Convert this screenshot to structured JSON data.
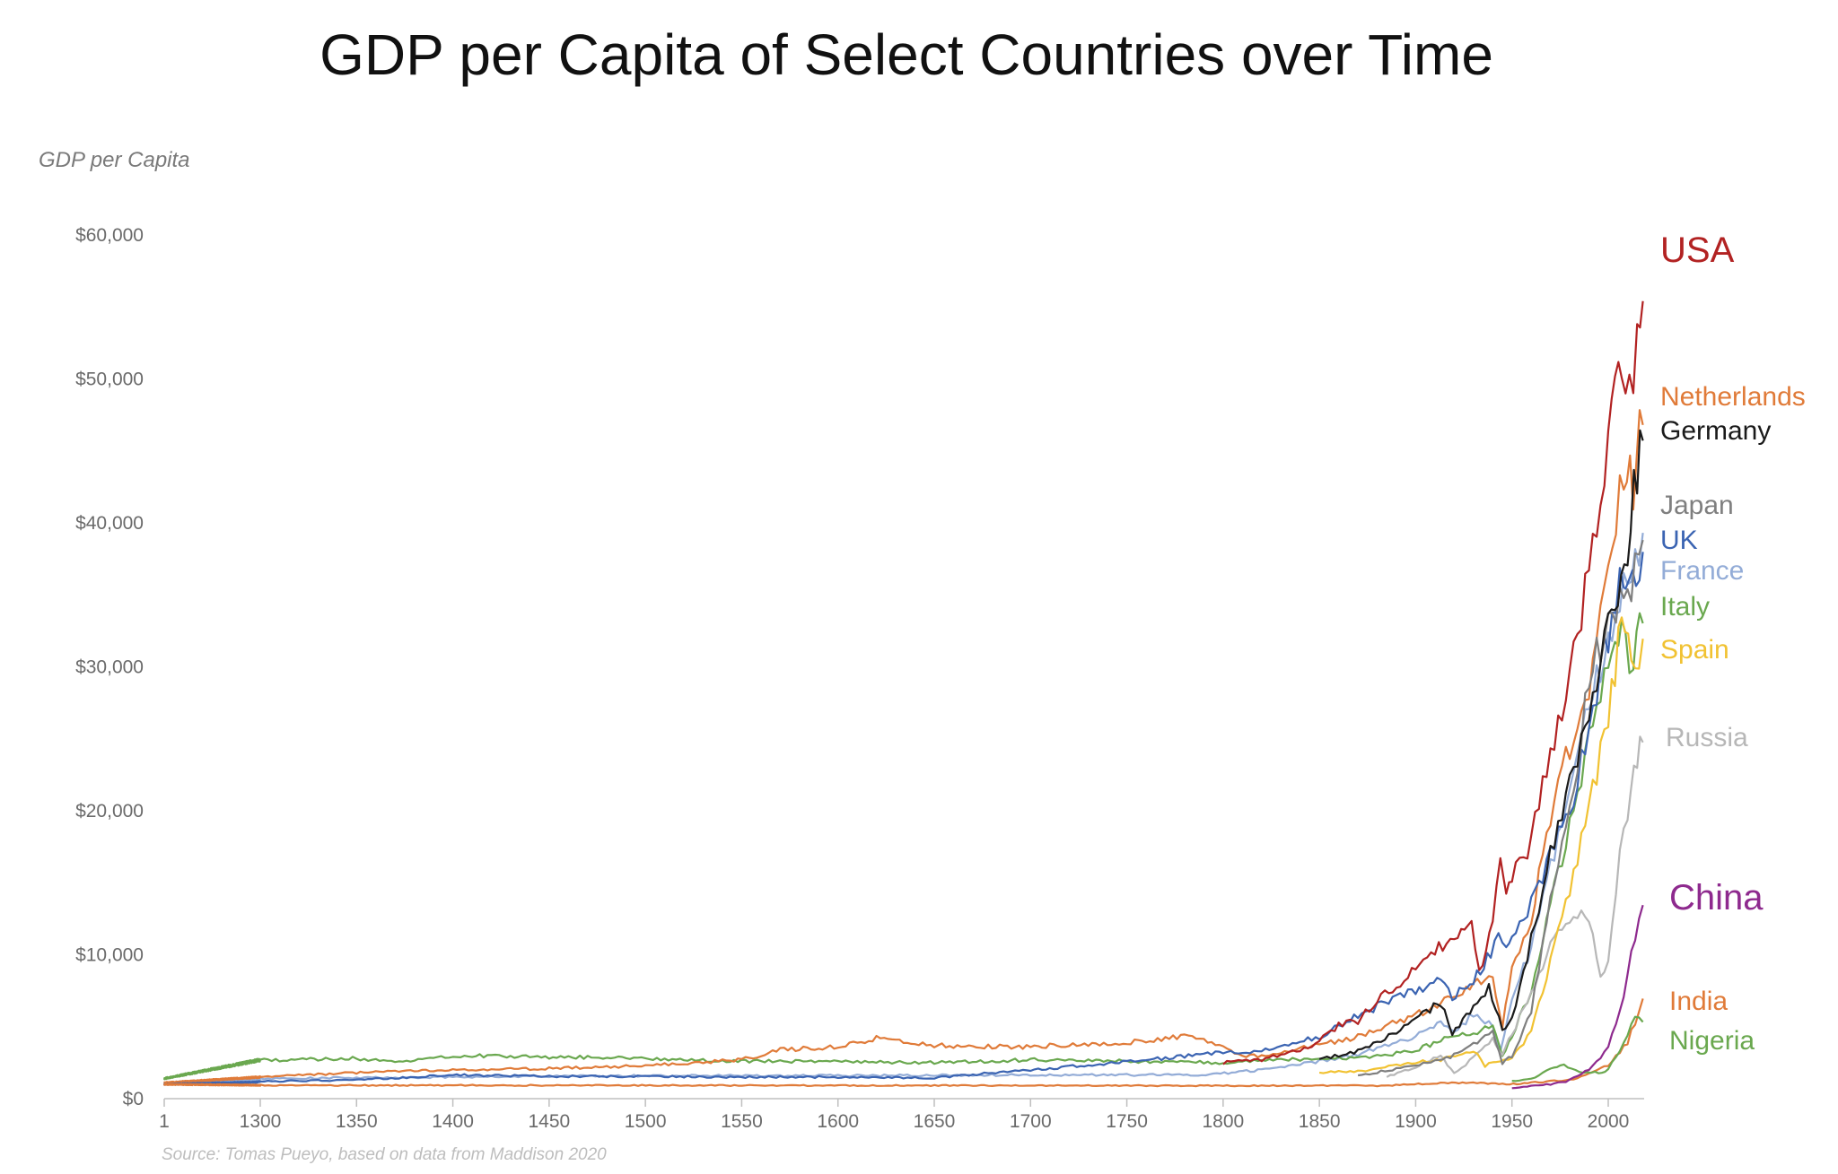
{
  "chart_data": {
    "type": "line",
    "title": "GDP per Capita of Select Countries over Time",
    "ylabel": "GDP per Capita",
    "xlabel": "",
    "source": "Source: Tomas Pueyo, based on data from Maddison 2020",
    "xlim": [
      1,
      2018
    ],
    "ylim": [
      0,
      60000
    ],
    "y_ticks": [
      {
        "value": 0,
        "label": "$0"
      },
      {
        "value": 10000,
        "label": "$10,000"
      },
      {
        "value": 20000,
        "label": "$20,000"
      },
      {
        "value": 30000,
        "label": "$30,000"
      },
      {
        "value": 40000,
        "label": "$40,000"
      },
      {
        "value": 50000,
        "label": "$50,000"
      },
      {
        "value": 60000,
        "label": "$60,000"
      }
    ],
    "x_ticks": [
      {
        "value": 1,
        "label": "1"
      },
      {
        "value": 1300,
        "label": "1300"
      },
      {
        "value": 1350,
        "label": "1350"
      },
      {
        "value": 1400,
        "label": "1400"
      },
      {
        "value": 1450,
        "label": "1450"
      },
      {
        "value": 1500,
        "label": "1500"
      },
      {
        "value": 1550,
        "label": "1550"
      },
      {
        "value": 1600,
        "label": "1600"
      },
      {
        "value": 1650,
        "label": "1650"
      },
      {
        "value": 1700,
        "label": "1700"
      },
      {
        "value": 1750,
        "label": "1750"
      },
      {
        "value": 1800,
        "label": "1800"
      },
      {
        "value": 1850,
        "label": "1850"
      },
      {
        "value": 1900,
        "label": "1900"
      },
      {
        "value": 1950,
        "label": "1950"
      },
      {
        "value": 2000,
        "label": "2000"
      }
    ],
    "grid": false,
    "legend": "direct labels at right",
    "series": [
      {
        "name": "USA",
        "color": "#b22222",
        "label_size": 40,
        "points": [
          [
            1800,
            2500
          ],
          [
            1820,
            2700
          ],
          [
            1840,
            3400
          ],
          [
            1850,
            4000
          ],
          [
            1860,
            5100
          ],
          [
            1870,
            5400
          ],
          [
            1880,
            6900
          ],
          [
            1890,
            7700
          ],
          [
            1900,
            9200
          ],
          [
            1910,
            10400
          ],
          [
            1920,
            10800
          ],
          [
            1929,
            12000
          ],
          [
            1933,
            8700
          ],
          [
            1940,
            12000
          ],
          [
            1944,
            17000
          ],
          [
            1947,
            14000
          ],
          [
            1950,
            15200
          ],
          [
            1960,
            18000
          ],
          [
            1970,
            24000
          ],
          [
            1980,
            29500
          ],
          [
            1990,
            36500
          ],
          [
            2000,
            45800
          ],
          [
            2007,
            50900
          ],
          [
            2009,
            48500
          ],
          [
            2015,
            52500
          ],
          [
            2018,
            55300
          ]
        ]
      },
      {
        "name": "Netherlands",
        "color": "#e07b39",
        "label_size": 30,
        "points": [
          [
            1,
            1100
          ],
          [
            1300,
            1500
          ],
          [
            1350,
            1800
          ],
          [
            1400,
            2000
          ],
          [
            1450,
            2100
          ],
          [
            1500,
            2300
          ],
          [
            1550,
            2700
          ],
          [
            1570,
            3400
          ],
          [
            1600,
            3600
          ],
          [
            1620,
            4200
          ],
          [
            1650,
            3700
          ],
          [
            1700,
            3600
          ],
          [
            1750,
            3900
          ],
          [
            1780,
            4300
          ],
          [
            1800,
            3700
          ],
          [
            1808,
            3000
          ],
          [
            1820,
            3000
          ],
          [
            1850,
            3700
          ],
          [
            1870,
            4300
          ],
          [
            1900,
            5800
          ],
          [
            1913,
            6700
          ],
          [
            1930,
            7900
          ],
          [
            1940,
            8500
          ],
          [
            1945,
            5000
          ],
          [
            1950,
            8800
          ],
          [
            1960,
            12600
          ],
          [
            1970,
            19500
          ],
          [
            1980,
            24500
          ],
          [
            1990,
            28800
          ],
          [
            2000,
            37700
          ],
          [
            2008,
            44000
          ],
          [
            2013,
            42500
          ],
          [
            2018,
            47500
          ]
        ]
      },
      {
        "name": "Germany",
        "color": "#1a1a1a",
        "label_size": 30,
        "points": [
          [
            1850,
            2700
          ],
          [
            1870,
            3300
          ],
          [
            1890,
            4600
          ],
          [
            1900,
            5500
          ],
          [
            1913,
            6700
          ],
          [
            1919,
            4600
          ],
          [
            1930,
            6200
          ],
          [
            1938,
            7800
          ],
          [
            1945,
            4700
          ],
          [
            1950,
            5500
          ],
          [
            1960,
            11000
          ],
          [
            1970,
            17000
          ],
          [
            1980,
            22000
          ],
          [
            1990,
            27000
          ],
          [
            2000,
            33000
          ],
          [
            2005,
            34000
          ],
          [
            2010,
            38500
          ],
          [
            2015,
            43500
          ],
          [
            2018,
            46000
          ]
        ]
      },
      {
        "name": "Japan",
        "color": "#7f7f7f",
        "label_size": 30,
        "points": [
          [
            1870,
            1600
          ],
          [
            1900,
            2300
          ],
          [
            1920,
            3000
          ],
          [
            1940,
            4600
          ],
          [
            1945,
            2500
          ],
          [
            1950,
            3000
          ],
          [
            1960,
            6000
          ],
          [
            1970,
            14000
          ],
          [
            1980,
            19500
          ],
          [
            1990,
            29500
          ],
          [
            2000,
            32500
          ],
          [
            2010,
            35000
          ],
          [
            2018,
            38700
          ]
        ]
      },
      {
        "name": "UK",
        "color": "#3b64b2",
        "label_size": 30,
        "points": [
          [
            1,
            1000
          ],
          [
            1250,
            1150
          ],
          [
            1300,
            1200
          ],
          [
            1350,
            1300
          ],
          [
            1400,
            1650
          ],
          [
            1450,
            1550
          ],
          [
            1500,
            1550
          ],
          [
            1550,
            1500
          ],
          [
            1600,
            1500
          ],
          [
            1650,
            1450
          ],
          [
            1700,
            2000
          ],
          [
            1750,
            2550
          ],
          [
            1800,
            3200
          ],
          [
            1820,
            3300
          ],
          [
            1850,
            4300
          ],
          [
            1870,
            5800
          ],
          [
            1900,
            7600
          ],
          [
            1913,
            8200
          ],
          [
            1919,
            7100
          ],
          [
            1930,
            8300
          ],
          [
            1939,
            10100
          ],
          [
            1943,
            12000
          ],
          [
            1947,
            10200
          ],
          [
            1950,
            11000
          ],
          [
            1960,
            13500
          ],
          [
            1970,
            17000
          ],
          [
            1980,
            20000
          ],
          [
            1990,
            26000
          ],
          [
            2000,
            32000
          ],
          [
            2008,
            36500
          ],
          [
            2009,
            34500
          ],
          [
            2018,
            38000
          ]
        ]
      },
      {
        "name": "France",
        "color": "#93acd7",
        "label_size": 30,
        "points": [
          [
            1,
            1000
          ],
          [
            1280,
            1300
          ],
          [
            1300,
            1400
          ],
          [
            1500,
            1600
          ],
          [
            1600,
            1600
          ],
          [
            1700,
            1650
          ],
          [
            1750,
            1650
          ],
          [
            1789,
            1650
          ],
          [
            1820,
            2000
          ],
          [
            1850,
            2600
          ],
          [
            1870,
            3100
          ],
          [
            1900,
            4300
          ],
          [
            1913,
            5200
          ],
          [
            1920,
            4500
          ],
          [
            1930,
            5900
          ],
          [
            1940,
            5000
          ],
          [
            1944,
            3300
          ],
          [
            1950,
            7000
          ],
          [
            1960,
            10500
          ],
          [
            1970,
            16000
          ],
          [
            1980,
            21500
          ],
          [
            1990,
            27000
          ],
          [
            2000,
            32000
          ],
          [
            2008,
            35500
          ],
          [
            2018,
            38500
          ]
        ]
      },
      {
        "name": "Italy",
        "color": "#6aa84f",
        "label_size": 30,
        "points": [
          [
            1,
            1400
          ],
          [
            1310,
            2700
          ],
          [
            1350,
            2800
          ],
          [
            1370,
            2500
          ],
          [
            1400,
            3000
          ],
          [
            1450,
            2900
          ],
          [
            1500,
            2800
          ],
          [
            1550,
            2600
          ],
          [
            1600,
            2600
          ],
          [
            1650,
            2500
          ],
          [
            1700,
            2700
          ],
          [
            1750,
            2600
          ],
          [
            1800,
            2500
          ],
          [
            1850,
            2800
          ],
          [
            1870,
            2800
          ],
          [
            1900,
            3300
          ],
          [
            1913,
            4100
          ],
          [
            1930,
            4600
          ],
          [
            1940,
            5000
          ],
          [
            1945,
            3000
          ],
          [
            1950,
            4400
          ],
          [
            1960,
            7500
          ],
          [
            1970,
            13500
          ],
          [
            1980,
            19000
          ],
          [
            1990,
            25000
          ],
          [
            2000,
            30000
          ],
          [
            2007,
            32000
          ],
          [
            2013,
            30000
          ],
          [
            2018,
            34000
          ]
        ]
      },
      {
        "name": "Spain",
        "color": "#f1c232",
        "label_size": 30,
        "points": [
          [
            1850,
            1800
          ],
          [
            1870,
            1900
          ],
          [
            1900,
            2500
          ],
          [
            1913,
            2700
          ],
          [
            1930,
            3400
          ],
          [
            1936,
            2300
          ],
          [
            1940,
            2500
          ],
          [
            1950,
            2800
          ],
          [
            1960,
            4600
          ],
          [
            1970,
            9500
          ],
          [
            1980,
            14500
          ],
          [
            1990,
            20000
          ],
          [
            2000,
            26500
          ],
          [
            2007,
            33000
          ],
          [
            2012,
            30000
          ],
          [
            2018,
            31800
          ]
        ]
      },
      {
        "name": "Russia",
        "color": "#b7b7b7",
        "label_size": 30,
        "points": [
          [
            1885,
            1500
          ],
          [
            1900,
            2200
          ],
          [
            1913,
            3000
          ],
          [
            1920,
            1800
          ],
          [
            1928,
            2600
          ],
          [
            1940,
            4200
          ],
          [
            1945,
            3000
          ],
          [
            1950,
            4500
          ],
          [
            1960,
            7500
          ],
          [
            1970,
            10500
          ],
          [
            1980,
            12400
          ],
          [
            1990,
            12800
          ],
          [
            1996,
            8500
          ],
          [
            2000,
            9500
          ],
          [
            2008,
            19500
          ],
          [
            2010,
            20000
          ],
          [
            2015,
            24000
          ],
          [
            2018,
            24800
          ]
        ]
      },
      {
        "name": "China",
        "color": "#8e2a8e",
        "label_size": 40,
        "points": [
          [
            1950,
            700
          ],
          [
            1960,
            900
          ],
          [
            1970,
            1000
          ],
          [
            1978,
            1200
          ],
          [
            1990,
            2000
          ],
          [
            2000,
            3500
          ],
          [
            2008,
            7000
          ],
          [
            2012,
            10000
          ],
          [
            2018,
            13100
          ]
        ]
      },
      {
        "name": "India",
        "color": "#e07b39",
        "label_size": 30,
        "points": [
          [
            1,
            1000
          ],
          [
            1884,
            900
          ],
          [
            1913,
            1100
          ],
          [
            1930,
            1100
          ],
          [
            1947,
            1000
          ],
          [
            1960,
            1100
          ],
          [
            1970,
            1200
          ],
          [
            1980,
            1300
          ],
          [
            1990,
            1700
          ],
          [
            2000,
            2300
          ],
          [
            2010,
            3900
          ],
          [
            2018,
            6800
          ]
        ]
      },
      {
        "name": "Nigeria",
        "color": "#6aa84f",
        "label_size": 30,
        "points": [
          [
            1950,
            1200
          ],
          [
            1960,
            1400
          ],
          [
            1970,
            2000
          ],
          [
            1975,
            2400
          ],
          [
            1985,
            1800
          ],
          [
            1995,
            1800
          ],
          [
            2000,
            2000
          ],
          [
            2008,
            3900
          ],
          [
            2014,
            5500
          ],
          [
            2018,
            5300
          ]
        ]
      }
    ]
  }
}
